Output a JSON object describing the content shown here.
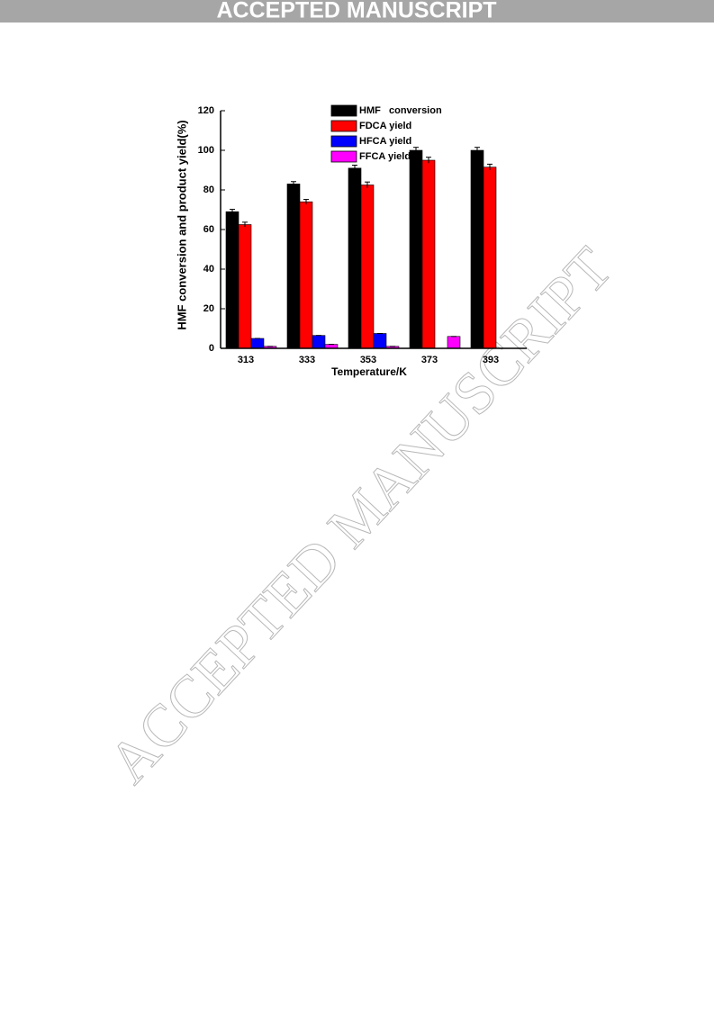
{
  "header": {
    "banner": "ACCEPTED MANUSCRIPT"
  },
  "watermark": "ACCEPTED MANUSCRIPT",
  "chart_data": {
    "type": "bar",
    "y_label": "HMF conversion and product yield(%)",
    "x_label": "Temperature/K",
    "categories": [
      "313",
      "333",
      "353",
      "373",
      "393"
    ],
    "series": [
      {
        "name": "HMF   conversion",
        "color": "#000000",
        "values": [
          69,
          83,
          91,
          100,
          100
        ],
        "errors": [
          1.2,
          1.2,
          1.5,
          1.5,
          1.5
        ]
      },
      {
        "name": "FDCA yield",
        "color": "#ff0000",
        "values": [
          62.5,
          74,
          82.5,
          95,
          91.5
        ],
        "errors": [
          1.2,
          1.2,
          1.5,
          1.5,
          1.5
        ]
      },
      {
        "name": "HFCA yield",
        "color": "#0000ff",
        "values": [
          5,
          6.5,
          7.5,
          0,
          0
        ],
        "errors": [
          0,
          0,
          0,
          0,
          0
        ]
      },
      {
        "name": "FFCA yield",
        "color": "#ff00ff",
        "values": [
          1,
          2,
          1,
          6,
          0
        ],
        "errors": [
          0,
          0,
          0,
          0,
          0
        ]
      }
    ],
    "ylim": [
      0,
      120
    ],
    "yticks": [
      0,
      20,
      40,
      60,
      80,
      100,
      120
    ]
  }
}
